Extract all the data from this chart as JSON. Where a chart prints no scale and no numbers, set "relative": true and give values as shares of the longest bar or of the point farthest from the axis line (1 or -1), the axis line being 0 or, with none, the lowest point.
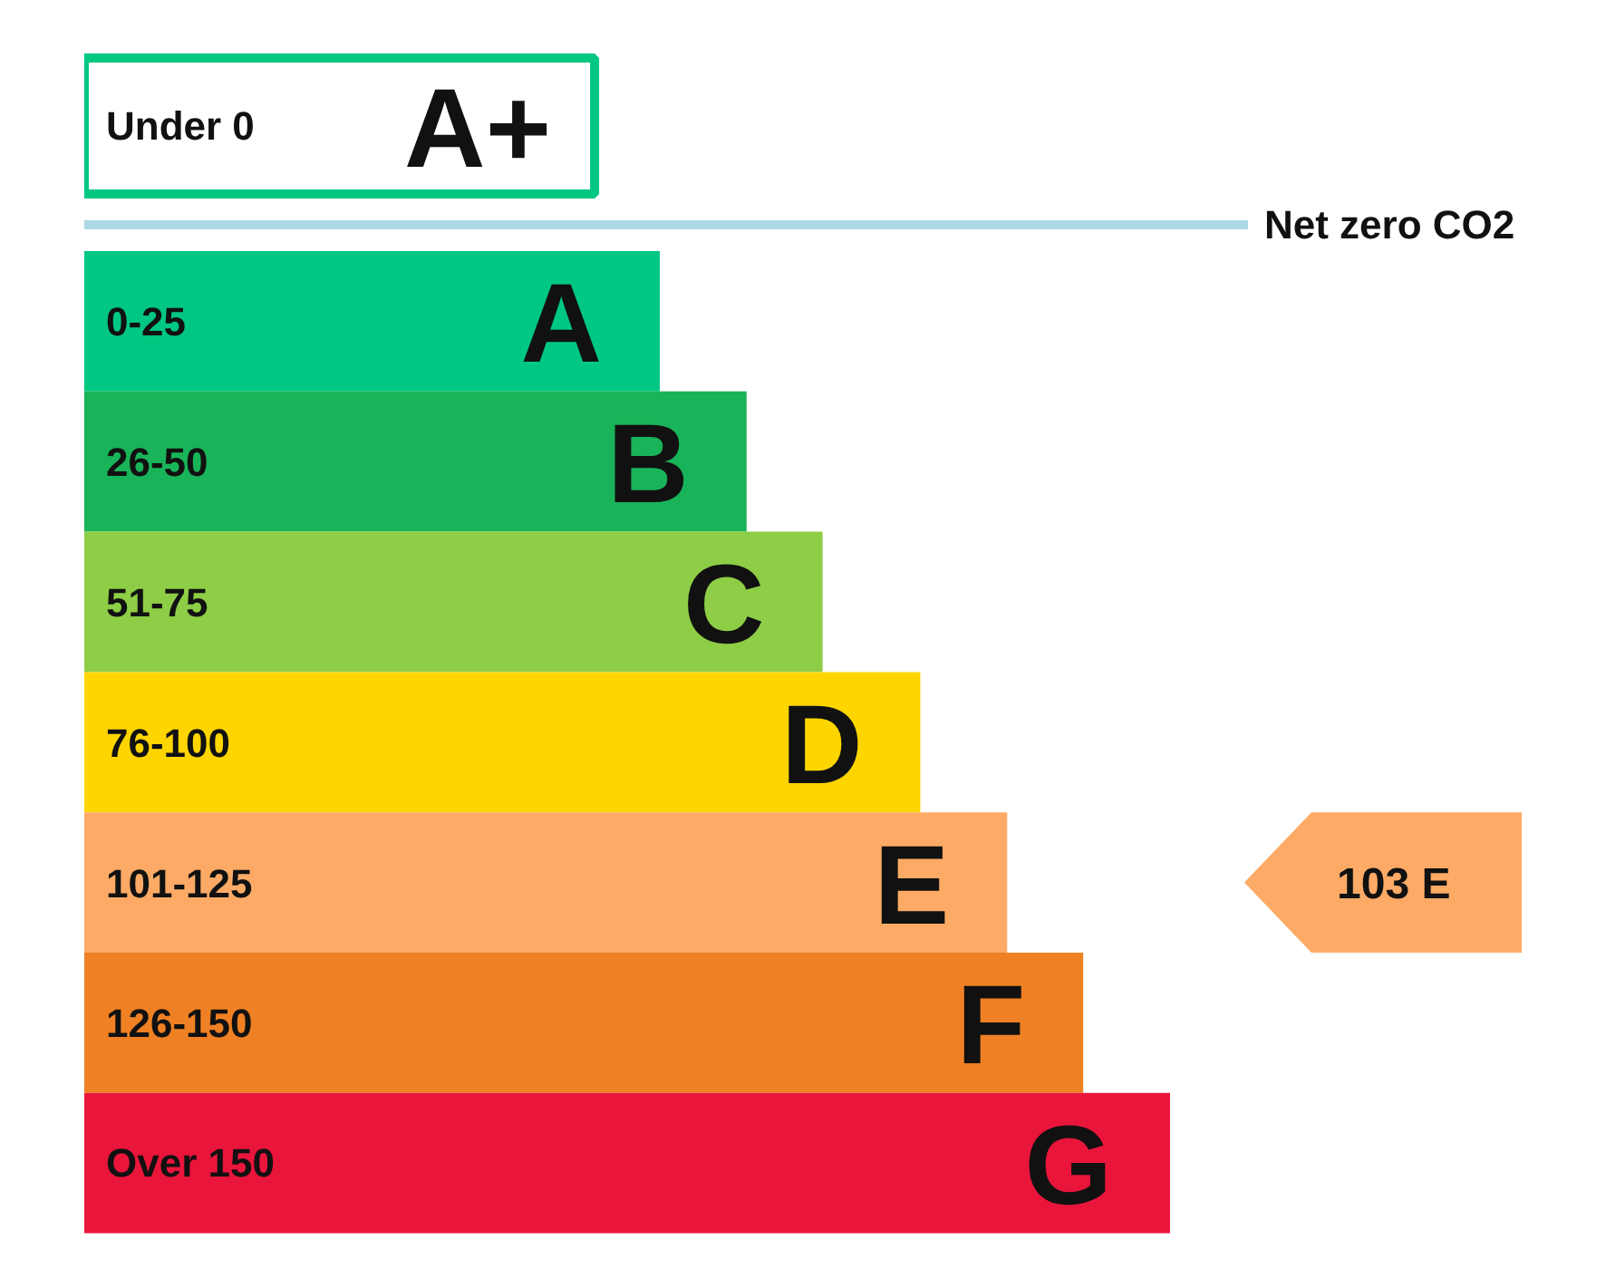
{
  "chart_data": {
    "type": "bar",
    "orientation": "horizontal",
    "relative": true,
    "categories": [
      "Under 0",
      "0-25",
      "26-50",
      "51-75",
      "76-100",
      "101-125",
      "126-150",
      "Over 150"
    ],
    "values": [
      0.47,
      0.53,
      0.61,
      0.68,
      0.77,
      0.85,
      0.92,
      1
    ],
    "colors": [
      "#00c781",
      "#00c781",
      "#19b459",
      "#8dce46",
      "#ffd500",
      "#fcaa65",
      "#ef8023",
      "#e9153b"
    ],
    "ref_lines": [
      {
        "axis": "y",
        "value": "Under 0",
        "label": "Net zero CO2",
        "color": "#add8e6"
      }
    ],
    "annotations": [
      {
        "text": "A+",
        "x": 0.47,
        "y": "Under 0"
      },
      {
        "text": "A",
        "x": 0.53,
        "y": "0-25"
      },
      {
        "text": "B",
        "x": 0.61,
        "y": "26-50"
      },
      {
        "text": "C",
        "x": 0.68,
        "y": "51-75"
      },
      {
        "text": "D",
        "x": 0.77,
        "y": "76-100"
      },
      {
        "text": "E",
        "x": 0.85,
        "y": "101-125"
      },
      {
        "text": "F",
        "x": 0.92,
        "y": "126-150"
      },
      {
        "text": "G",
        "x": 1,
        "y": "Over 150"
      },
      "103 E"
    ]
  }
}
